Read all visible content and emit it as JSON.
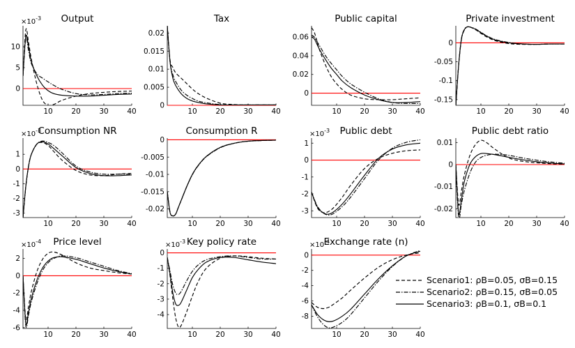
{
  "chart_data": [
    {
      "type": "line",
      "title": "Output",
      "exponent": "10",
      "exponent_power": "-3",
      "xlim": [
        1,
        40
      ],
      "ylim": [
        -4,
        15
      ],
      "xticks": [
        10,
        20,
        30,
        40
      ],
      "xtick_labels": [
        "10",
        "20",
        "30",
        "40"
      ],
      "yticks": [
        0,
        5,
        10
      ],
      "ytick_labels": [
        "0",
        "5",
        "10"
      ],
      "x": [
        1,
        2,
        3,
        4,
        6,
        8,
        10,
        12,
        15,
        20,
        25,
        30,
        35,
        40
      ],
      "series": [
        {
          "name": "Scenario1",
          "values": [
            3,
            14,
            11,
            7,
            1,
            -2.8,
            -4,
            -3.8,
            -2.8,
            -1.8,
            -1.2,
            -0.9,
            -0.7,
            -0.6
          ]
        },
        {
          "name": "Scenario2",
          "values": [
            3,
            12,
            9,
            6,
            3.5,
            2.5,
            1.6,
            0.8,
            -0.2,
            -1.2,
            -1.5,
            -1.4,
            -1.2,
            -1.1
          ]
        },
        {
          "name": "Scenario3",
          "values": [
            3,
            12.5,
            10,
            6.5,
            3,
            0.8,
            -0.5,
            -1.2,
            -1.6,
            -1.8,
            -1.8,
            -1.6,
            -1.4,
            -1.3
          ]
        }
      ]
    },
    {
      "type": "line",
      "title": "Tax",
      "xlim": [
        1,
        40
      ],
      "ylim": [
        0,
        0.022
      ],
      "xticks": [
        10,
        20,
        30,
        40
      ],
      "xtick_labels": [
        "10",
        "20",
        "30",
        "40"
      ],
      "yticks": [
        0,
        0.005,
        0.01,
        0.015,
        0.02
      ],
      "ytick_labels": [
        "0",
        "0.005",
        "0.01",
        "0.015",
        "0.02"
      ],
      "x": [
        1,
        2,
        3,
        4,
        6,
        8,
        10,
        12,
        15,
        20,
        25,
        30,
        35,
        40
      ],
      "series": [
        {
          "name": "Scenario1",
          "values": [
            0.022,
            0.0125,
            0.0105,
            0.009,
            0.0075,
            0.006,
            0.0045,
            0.0033,
            0.002,
            0.0006,
            0.0002,
            0.0001,
            0.0001,
            0.0001
          ]
        },
        {
          "name": "Scenario2",
          "values": [
            0.022,
            0.012,
            0.0085,
            0.0066,
            0.0042,
            0.0028,
            0.0019,
            0.0012,
            0.0007,
            0.0002,
            0.0001,
            0.0001,
            0.0001,
            0.0001
          ]
        },
        {
          "name": "Scenario3",
          "values": [
            0.022,
            0.012,
            0.0075,
            0.0055,
            0.0032,
            0.0019,
            0.0012,
            0.0008,
            0.0004,
            0.0001,
            0.0001,
            0.0001,
            0.0001,
            0.0001
          ]
        }
      ]
    },
    {
      "type": "line",
      "title": "Public capital",
      "xlim": [
        1,
        40
      ],
      "ylim": [
        -0.013,
        0.072
      ],
      "xticks": [
        10,
        20,
        30,
        40
      ],
      "xtick_labels": [
        "10",
        "20",
        "30",
        "40"
      ],
      "yticks": [
        0,
        0.02,
        0.04,
        0.06
      ],
      "ytick_labels": [
        "0",
        "0.02",
        "0.04",
        "0.06"
      ],
      "x": [
        1,
        2,
        3,
        4,
        6,
        8,
        10,
        12,
        15,
        20,
        25,
        30,
        35,
        40
      ],
      "series": [
        {
          "name": "Scenario1",
          "values": [
            0.07,
            0.065,
            0.055,
            0.045,
            0.03,
            0.018,
            0.01,
            0.004,
            -0.002,
            -0.006,
            -0.007,
            -0.007,
            -0.006,
            -0.005
          ]
        },
        {
          "name": "Scenario2",
          "values": [
            0.062,
            0.06,
            0.055,
            0.05,
            0.04,
            0.032,
            0.025,
            0.018,
            0.01,
            0.001,
            -0.006,
            -0.01,
            -0.011,
            -0.011
          ]
        },
        {
          "name": "Scenario3",
          "values": [
            0.06,
            0.058,
            0.052,
            0.046,
            0.036,
            0.027,
            0.02,
            0.013,
            0.006,
            -0.002,
            -0.007,
            -0.01,
            -0.01,
            -0.009
          ]
        }
      ]
    },
    {
      "type": "line",
      "title": "Private investment",
      "xlim": [
        1,
        40
      ],
      "ylim": [
        -0.165,
        0.045
      ],
      "xticks": [
        10,
        20,
        30,
        40
      ],
      "xtick_labels": [
        "10",
        "20",
        "30",
        "40"
      ],
      "yticks": [
        -0.15,
        -0.1,
        -0.05,
        0
      ],
      "ytick_labels": [
        "-0.15",
        "-0.1",
        "-0.05",
        "0"
      ],
      "x": [
        1,
        2,
        3,
        4,
        5,
        6,
        8,
        10,
        12,
        15,
        20,
        25,
        30,
        35,
        40
      ],
      "series": [
        {
          "name": "Scenario1",
          "values": [
            -0.165,
            -0.06,
            0.01,
            0.035,
            0.042,
            0.042,
            0.035,
            0.025,
            0.016,
            0.006,
            -0.002,
            -0.004,
            -0.004,
            -0.003,
            -0.003
          ]
        },
        {
          "name": "Scenario2",
          "values": [
            -0.165,
            -0.06,
            0.008,
            0.033,
            0.041,
            0.042,
            0.037,
            0.028,
            0.019,
            0.009,
            0.001,
            -0.003,
            -0.004,
            -0.003,
            -0.003
          ]
        },
        {
          "name": "Scenario3",
          "values": [
            -0.165,
            -0.06,
            0.01,
            0.034,
            0.042,
            0.042,
            0.036,
            0.027,
            0.018,
            0.008,
            0.0,
            -0.003,
            -0.004,
            -0.003,
            -0.003
          ]
        }
      ]
    },
    {
      "type": "line",
      "title": "Consumption NR",
      "exponent": "10",
      "exponent_power": "-3",
      "xlim": [
        1,
        40
      ],
      "ylim": [
        -3.3,
        2.1
      ],
      "xticks": [
        10,
        20,
        30,
        40
      ],
      "xtick_labels": [
        "10",
        "20",
        "30",
        "40"
      ],
      "yticks": [
        -3,
        -2,
        -1,
        0,
        1
      ],
      "ytick_labels": [
        "-3",
        "-2",
        "-1",
        "0",
        "1"
      ],
      "x": [
        1,
        2,
        3,
        4,
        6,
        8,
        10,
        12,
        15,
        20,
        25,
        30,
        35,
        40
      ],
      "series": [
        {
          "name": "Scenario1",
          "values": [
            -3.3,
            -1.2,
            0.2,
            1.0,
            1.7,
            1.8,
            1.6,
            1.2,
            0.6,
            -0.1,
            -0.4,
            -0.45,
            -0.35,
            -0.3
          ]
        },
        {
          "name": "Scenario2",
          "values": [
            -3.3,
            -1.2,
            0.2,
            1.0,
            1.7,
            1.9,
            1.8,
            1.6,
            1.1,
            0.2,
            -0.2,
            -0.35,
            -0.35,
            -0.35
          ]
        },
        {
          "name": "Scenario3",
          "values": [
            -3.3,
            -1.2,
            0.2,
            1.0,
            1.7,
            1.85,
            1.7,
            1.4,
            0.9,
            0.1,
            -0.3,
            -0.45,
            -0.45,
            -0.4
          ]
        }
      ]
    },
    {
      "type": "line",
      "title": "Consumption R",
      "xlim": [
        1,
        40
      ],
      "ylim": [
        -0.0225,
        0.0005
      ],
      "xticks": [
        10,
        20,
        30,
        40
      ],
      "xtick_labels": [
        "10",
        "20",
        "30",
        "40"
      ],
      "yticks": [
        -0.02,
        -0.015,
        -0.01,
        -0.005,
        0
      ],
      "ytick_labels": [
        "-0.02",
        "-0.015",
        "-0.01",
        "-0.005",
        "0"
      ],
      "x": [
        1,
        2,
        3,
        4,
        5,
        6,
        8,
        10,
        12,
        15,
        20,
        25,
        30,
        35,
        40
      ],
      "series": [
        {
          "name": "Scenario1",
          "values": [
            -0.015,
            -0.021,
            -0.022,
            -0.0215,
            -0.0195,
            -0.0175,
            -0.0135,
            -0.01,
            -0.0075,
            -0.0048,
            -0.0022,
            -0.001,
            -0.0004,
            -0.0002,
            -0.0001
          ]
        },
        {
          "name": "Scenario2",
          "values": [
            -0.015,
            -0.021,
            -0.022,
            -0.0215,
            -0.0195,
            -0.0175,
            -0.0135,
            -0.0101,
            -0.0076,
            -0.0049,
            -0.0023,
            -0.001,
            -0.0004,
            -0.0002,
            -0.0001
          ]
        },
        {
          "name": "Scenario3",
          "values": [
            -0.015,
            -0.021,
            -0.022,
            -0.0215,
            -0.0195,
            -0.0175,
            -0.0135,
            -0.01,
            -0.0075,
            -0.0048,
            -0.0022,
            -0.001,
            -0.0004,
            -0.0002,
            -0.0001
          ]
        }
      ]
    },
    {
      "type": "line",
      "title": "Public debt",
      "exponent": "10",
      "exponent_power": "-3",
      "xlim": [
        1,
        40
      ],
      "ylim": [
        -3.4,
        1.3
      ],
      "xticks": [
        10,
        20,
        30,
        40
      ],
      "xtick_labels": [
        "10",
        "20",
        "30",
        "40"
      ],
      "yticks": [
        -3,
        -2,
        -1,
        0,
        1
      ],
      "ytick_labels": [
        "-3",
        "-2",
        "-1",
        "0",
        "1"
      ],
      "x": [
        1,
        3,
        5,
        7,
        9,
        12,
        15,
        20,
        25,
        30,
        35,
        40
      ],
      "series": [
        {
          "name": "Scenario1",
          "values": [
            -1.9,
            -2.8,
            -3.1,
            -3.05,
            -2.8,
            -2.2,
            -1.5,
            -0.5,
            0.1,
            0.4,
            0.55,
            0.6
          ]
        },
        {
          "name": "Scenario2",
          "values": [
            -1.9,
            -2.7,
            -3.1,
            -3.25,
            -3.15,
            -2.75,
            -2.2,
            -1.1,
            0.0,
            0.7,
            1.05,
            1.2
          ]
        },
        {
          "name": "Scenario3",
          "values": [
            -1.9,
            -2.75,
            -3.1,
            -3.2,
            -3.05,
            -2.6,
            -2.0,
            -0.9,
            0.1,
            0.65,
            0.9,
            1.0
          ]
        }
      ]
    },
    {
      "type": "line",
      "title": "Public debt ratio",
      "xlim": [
        1,
        40
      ],
      "ylim": [
        -0.024,
        0.012
      ],
      "xticks": [
        10,
        20,
        30,
        40
      ],
      "xtick_labels": [
        "10",
        "20",
        "30",
        "40"
      ],
      "yticks": [
        -0.02,
        -0.01,
        0,
        0.01
      ],
      "ytick_labels": [
        "-0.02",
        "-0.01",
        "0",
        "0.01"
      ],
      "x": [
        1,
        2,
        3,
        4,
        6,
        8,
        10,
        12,
        15,
        20,
        25,
        30,
        35,
        40
      ],
      "series": [
        {
          "name": "Scenario1",
          "values": [
            0,
            -0.018,
            -0.012,
            -0.005,
            0.004,
            0.009,
            0.011,
            0.01,
            0.007,
            0.003,
            0.0015,
            0.0008,
            0.0004,
            0.0002
          ]
        },
        {
          "name": "Scenario2",
          "values": [
            0,
            -0.024,
            -0.018,
            -0.012,
            -0.004,
            0.001,
            0.0032,
            0.0042,
            0.0047,
            0.0042,
            0.003,
            0.002,
            0.0012,
            0.0006
          ]
        },
        {
          "name": "Scenario3",
          "values": [
            0,
            -0.022,
            -0.016,
            -0.008,
            0.0,
            0.0035,
            0.005,
            0.005,
            0.0045,
            0.0033,
            0.0022,
            0.0013,
            0.0007,
            0.0003
          ]
        }
      ]
    },
    {
      "type": "line",
      "title": "Price level",
      "exponent": "10",
      "exponent_power": "-4",
      "xlim": [
        1,
        40
      ],
      "ylim": [
        -6.1,
        3.1
      ],
      "xticks": [
        10,
        20,
        30,
        40
      ],
      "xtick_labels": [
        "10",
        "20",
        "30",
        "40"
      ],
      "yticks": [
        -6,
        -4,
        -2,
        0,
        2
      ],
      "ytick_labels": [
        "-6",
        "-4",
        "-2",
        "0",
        "2"
      ],
      "x": [
        1,
        2,
        3,
        4,
        6,
        8,
        10,
        12,
        15,
        20,
        25,
        30,
        35,
        40
      ],
      "series": [
        {
          "name": "Scenario1",
          "values": [
            0,
            -5.0,
            -3.5,
            -1.8,
            0.5,
            1.9,
            2.6,
            2.75,
            2.4,
            1.5,
            0.9,
            0.6,
            0.35,
            0.2
          ]
        },
        {
          "name": "Scenario2",
          "values": [
            0,
            -5.8,
            -4.5,
            -3.0,
            -0.9,
            0.6,
            1.5,
            2.0,
            2.3,
            2.1,
            1.6,
            1.1,
            0.6,
            0.25
          ]
        },
        {
          "name": "Scenario3",
          "values": [
            0,
            -5.5,
            -4.2,
            -2.6,
            -0.5,
            0.9,
            1.7,
            2.1,
            2.2,
            1.9,
            1.4,
            0.9,
            0.5,
            0.2
          ]
        }
      ]
    },
    {
      "type": "line",
      "title": "Key policy rate",
      "exponent": "10",
      "exponent_power": "-3",
      "xlim": [
        1,
        40
      ],
      "ylim": [
        -4.9,
        0.25
      ],
      "xticks": [
        10,
        20,
        30,
        40
      ],
      "xtick_labels": [
        "10",
        "20",
        "30",
        "40"
      ],
      "yticks": [
        -4,
        -3,
        -2,
        -1,
        0
      ],
      "ytick_labels": [
        "-4",
        "-3",
        "-2",
        "-1",
        "0"
      ],
      "x": [
        1,
        2,
        3,
        4,
        5,
        6,
        8,
        10,
        12,
        15,
        20,
        25,
        30,
        35,
        40
      ],
      "series": [
        {
          "name": "Scenario1",
          "values": [
            -0.3,
            -1.5,
            -3.0,
            -4.2,
            -4.8,
            -4.7,
            -3.8,
            -2.8,
            -1.9,
            -1.0,
            -0.35,
            -0.2,
            -0.25,
            -0.35,
            -0.4
          ]
        },
        {
          "name": "Scenario2",
          "values": [
            -0.3,
            -1.2,
            -2.1,
            -2.6,
            -2.7,
            -2.5,
            -1.8,
            -1.2,
            -0.8,
            -0.45,
            -0.25,
            -0.2,
            -0.3,
            -0.4,
            -0.4
          ]
        },
        {
          "name": "Scenario3",
          "values": [
            -0.3,
            -1.4,
            -2.6,
            -3.3,
            -3.4,
            -3.2,
            -2.4,
            -1.6,
            -1.1,
            -0.6,
            -0.3,
            -0.3,
            -0.45,
            -0.6,
            -0.7
          ]
        }
      ]
    },
    {
      "type": "line",
      "title": "Exchange rate (n)",
      "exponent": "10",
      "exponent_power": "-4",
      "xlim": [
        1,
        40
      ],
      "ylim": [
        -9.6,
        0.8
      ],
      "xticks": [
        10,
        20,
        30,
        40
      ],
      "xtick_labels": [
        "10",
        "20",
        "30",
        "40"
      ],
      "yticks": [
        -8,
        -6,
        -4,
        -2,
        0
      ],
      "ytick_labels": [
        "-8",
        "-6",
        "-4",
        "-2",
        "0"
      ],
      "x": [
        1,
        3,
        5,
        7,
        9,
        12,
        15,
        20,
        25,
        30,
        35,
        40
      ],
      "series": [
        {
          "name": "Scenario1",
          "values": [
            -6.2,
            -6.8,
            -7.0,
            -6.85,
            -6.4,
            -5.6,
            -4.6,
            -3.0,
            -1.6,
            -0.6,
            0.0,
            0.3
          ]
        },
        {
          "name": "Scenario2",
          "values": [
            -6.5,
            -8.0,
            -9.0,
            -9.5,
            -9.4,
            -8.8,
            -7.8,
            -5.6,
            -3.4,
            -1.5,
            -0.1,
            0.6
          ]
        },
        {
          "name": "Scenario3",
          "values": [
            -6.5,
            -7.7,
            -8.4,
            -8.7,
            -8.6,
            -8.0,
            -7.1,
            -5.1,
            -3.1,
            -1.4,
            -0.1,
            0.5
          ]
        }
      ]
    }
  ],
  "legend": [
    {
      "label": "Scenario1: ρB=0.05, σB=0.15",
      "style": "dashed"
    },
    {
      "label": "Scenario2: ρB=0.15, σB=0.05",
      "style": "dashdot"
    },
    {
      "label": "Scenario3: ρB=0.1, σB=0.1",
      "style": "solid"
    }
  ],
  "colors": {
    "zero_line": "#ff0000",
    "series": "#000000",
    "axis": "#000000"
  }
}
